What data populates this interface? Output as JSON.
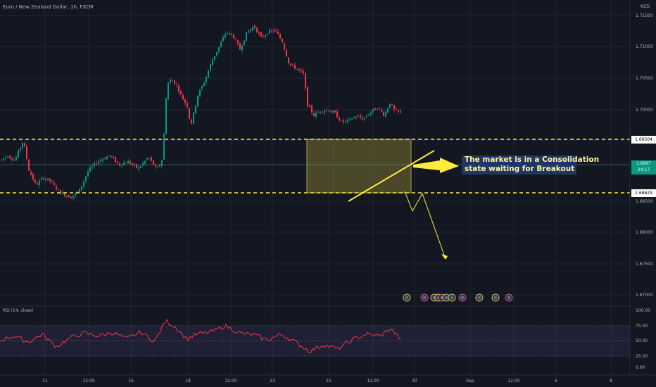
{
  "header": {
    "symbol": "Euro / New Zealand Dollar, 1h, FXCM",
    "currency": "NZD"
  },
  "price_axis": {
    "labels": [
      "1.71500",
      "1.71000",
      "1.70500",
      "1.70000",
      "1.69500",
      "1.69000",
      "1.68500",
      "1.68000",
      "1.67500",
      "1.67000"
    ],
    "level_top": "1.69504",
    "level_bottom": "1.68629",
    "current_price": "1.6907",
    "countdown": "24:17"
  },
  "rsi": {
    "title": "RSI (14, close)",
    "labels": [
      "100.00",
      "75.00",
      "50.00",
      "25.00",
      "0.00"
    ]
  },
  "time_axis": {
    "labels": [
      "11",
      "12:00",
      "16",
      "12:00",
      "18",
      "12:00",
      "23",
      "25",
      "12:00",
      "30",
      "Sep",
      "12:00",
      "6",
      "8"
    ]
  },
  "annotation": {
    "line1": "The market is in a Consolidation",
    "line2": "state waiting for Breakout"
  },
  "colors": {
    "background": "#131722",
    "up": "#089981",
    "down": "#f23645",
    "levels": "#ffeb3b",
    "rsi_line": "#f23645"
  },
  "chart_data": {
    "type": "candlestick",
    "title": "Euro / New Zealand Dollar, 1h, FXCM",
    "ylim": [
      1.6685,
      1.717
    ],
    "horizontal_levels": [
      1.69504,
      1.68629
    ],
    "consolidation_box": {
      "y_range": [
        1.68629,
        1.69504
      ]
    },
    "price_path": [
      [
        0,
        1.679
      ],
      [
        10,
        1.6803
      ],
      [
        20,
        1.679
      ],
      [
        32,
        1.6842
      ],
      [
        40,
        1.6765
      ],
      [
        50,
        1.6725
      ],
      [
        60,
        1.6745
      ],
      [
        70,
        1.6736
      ],
      [
        85,
        1.6705
      ],
      [
        100,
        1.6694
      ],
      [
        112,
        1.6712
      ],
      [
        125,
        1.6765
      ],
      [
        140,
        1.679
      ],
      [
        155,
        1.6803
      ],
      [
        168,
        1.6778
      ],
      [
        180,
        1.6788
      ],
      [
        195,
        1.6768
      ],
      [
        210,
        1.6798
      ],
      [
        222,
        1.6765
      ],
      [
        230,
        1.6795
      ],
      [
        236,
        1.6985
      ],
      [
        242,
        1.7003
      ],
      [
        250,
        1.6985
      ],
      [
        258,
        1.6953
      ],
      [
        265,
        1.6932
      ],
      [
        270,
        1.688
      ],
      [
        280,
        1.696
      ],
      [
        290,
        1.6998
      ],
      [
        300,
        1.705
      ],
      [
        310,
        1.7085
      ],
      [
        320,
        1.7125
      ],
      [
        330,
        1.7115
      ],
      [
        340,
        1.708
      ],
      [
        350,
        1.7125
      ],
      [
        360,
        1.714
      ],
      [
        370,
        1.711
      ],
      [
        380,
        1.7125
      ],
      [
        390,
        1.713
      ],
      [
        400,
        1.71
      ],
      [
        410,
        1.704
      ],
      [
        420,
        1.703
      ],
      [
        430,
        1.7015
      ],
      [
        436,
        1.6935
      ],
      [
        445,
        1.6908
      ],
      [
        455,
        1.692
      ],
      [
        465,
        1.6922
      ],
      [
        475,
        1.6912
      ],
      [
        485,
        1.6888
      ],
      [
        495,
        1.6895
      ],
      [
        505,
        1.6905
      ],
      [
        515,
        1.6898
      ],
      [
        525,
        1.6915
      ],
      [
        535,
        1.6928
      ],
      [
        545,
        1.6908
      ],
      [
        553,
        1.694
      ],
      [
        560,
        1.6918
      ],
      [
        566,
        1.6915
      ],
      [
        572,
        1.691
      ]
    ],
    "rsi_path": [
      [
        0,
        47
      ],
      [
        20,
        55
      ],
      [
        40,
        44
      ],
      [
        60,
        58
      ],
      [
        80,
        36
      ],
      [
        100,
        52
      ],
      [
        120,
        60
      ],
      [
        140,
        55
      ],
      [
        160,
        61
      ],
      [
        180,
        50
      ],
      [
        200,
        62
      ],
      [
        220,
        45
      ],
      [
        235,
        82
      ],
      [
        250,
        70
      ],
      [
        265,
        50
      ],
      [
        280,
        58
      ],
      [
        300,
        62
      ],
      [
        320,
        73
      ],
      [
        340,
        60
      ],
      [
        360,
        57
      ],
      [
        380,
        48
      ],
      [
        400,
        58
      ],
      [
        420,
        44
      ],
      [
        440,
        28
      ],
      [
        460,
        40
      ],
      [
        480,
        32
      ],
      [
        500,
        48
      ],
      [
        520,
        58
      ],
      [
        540,
        55
      ],
      [
        555,
        68
      ],
      [
        570,
        48
      ]
    ],
    "rsi_levels": [
      70,
      30
    ],
    "rsi_range": [
      0,
      100
    ]
  }
}
